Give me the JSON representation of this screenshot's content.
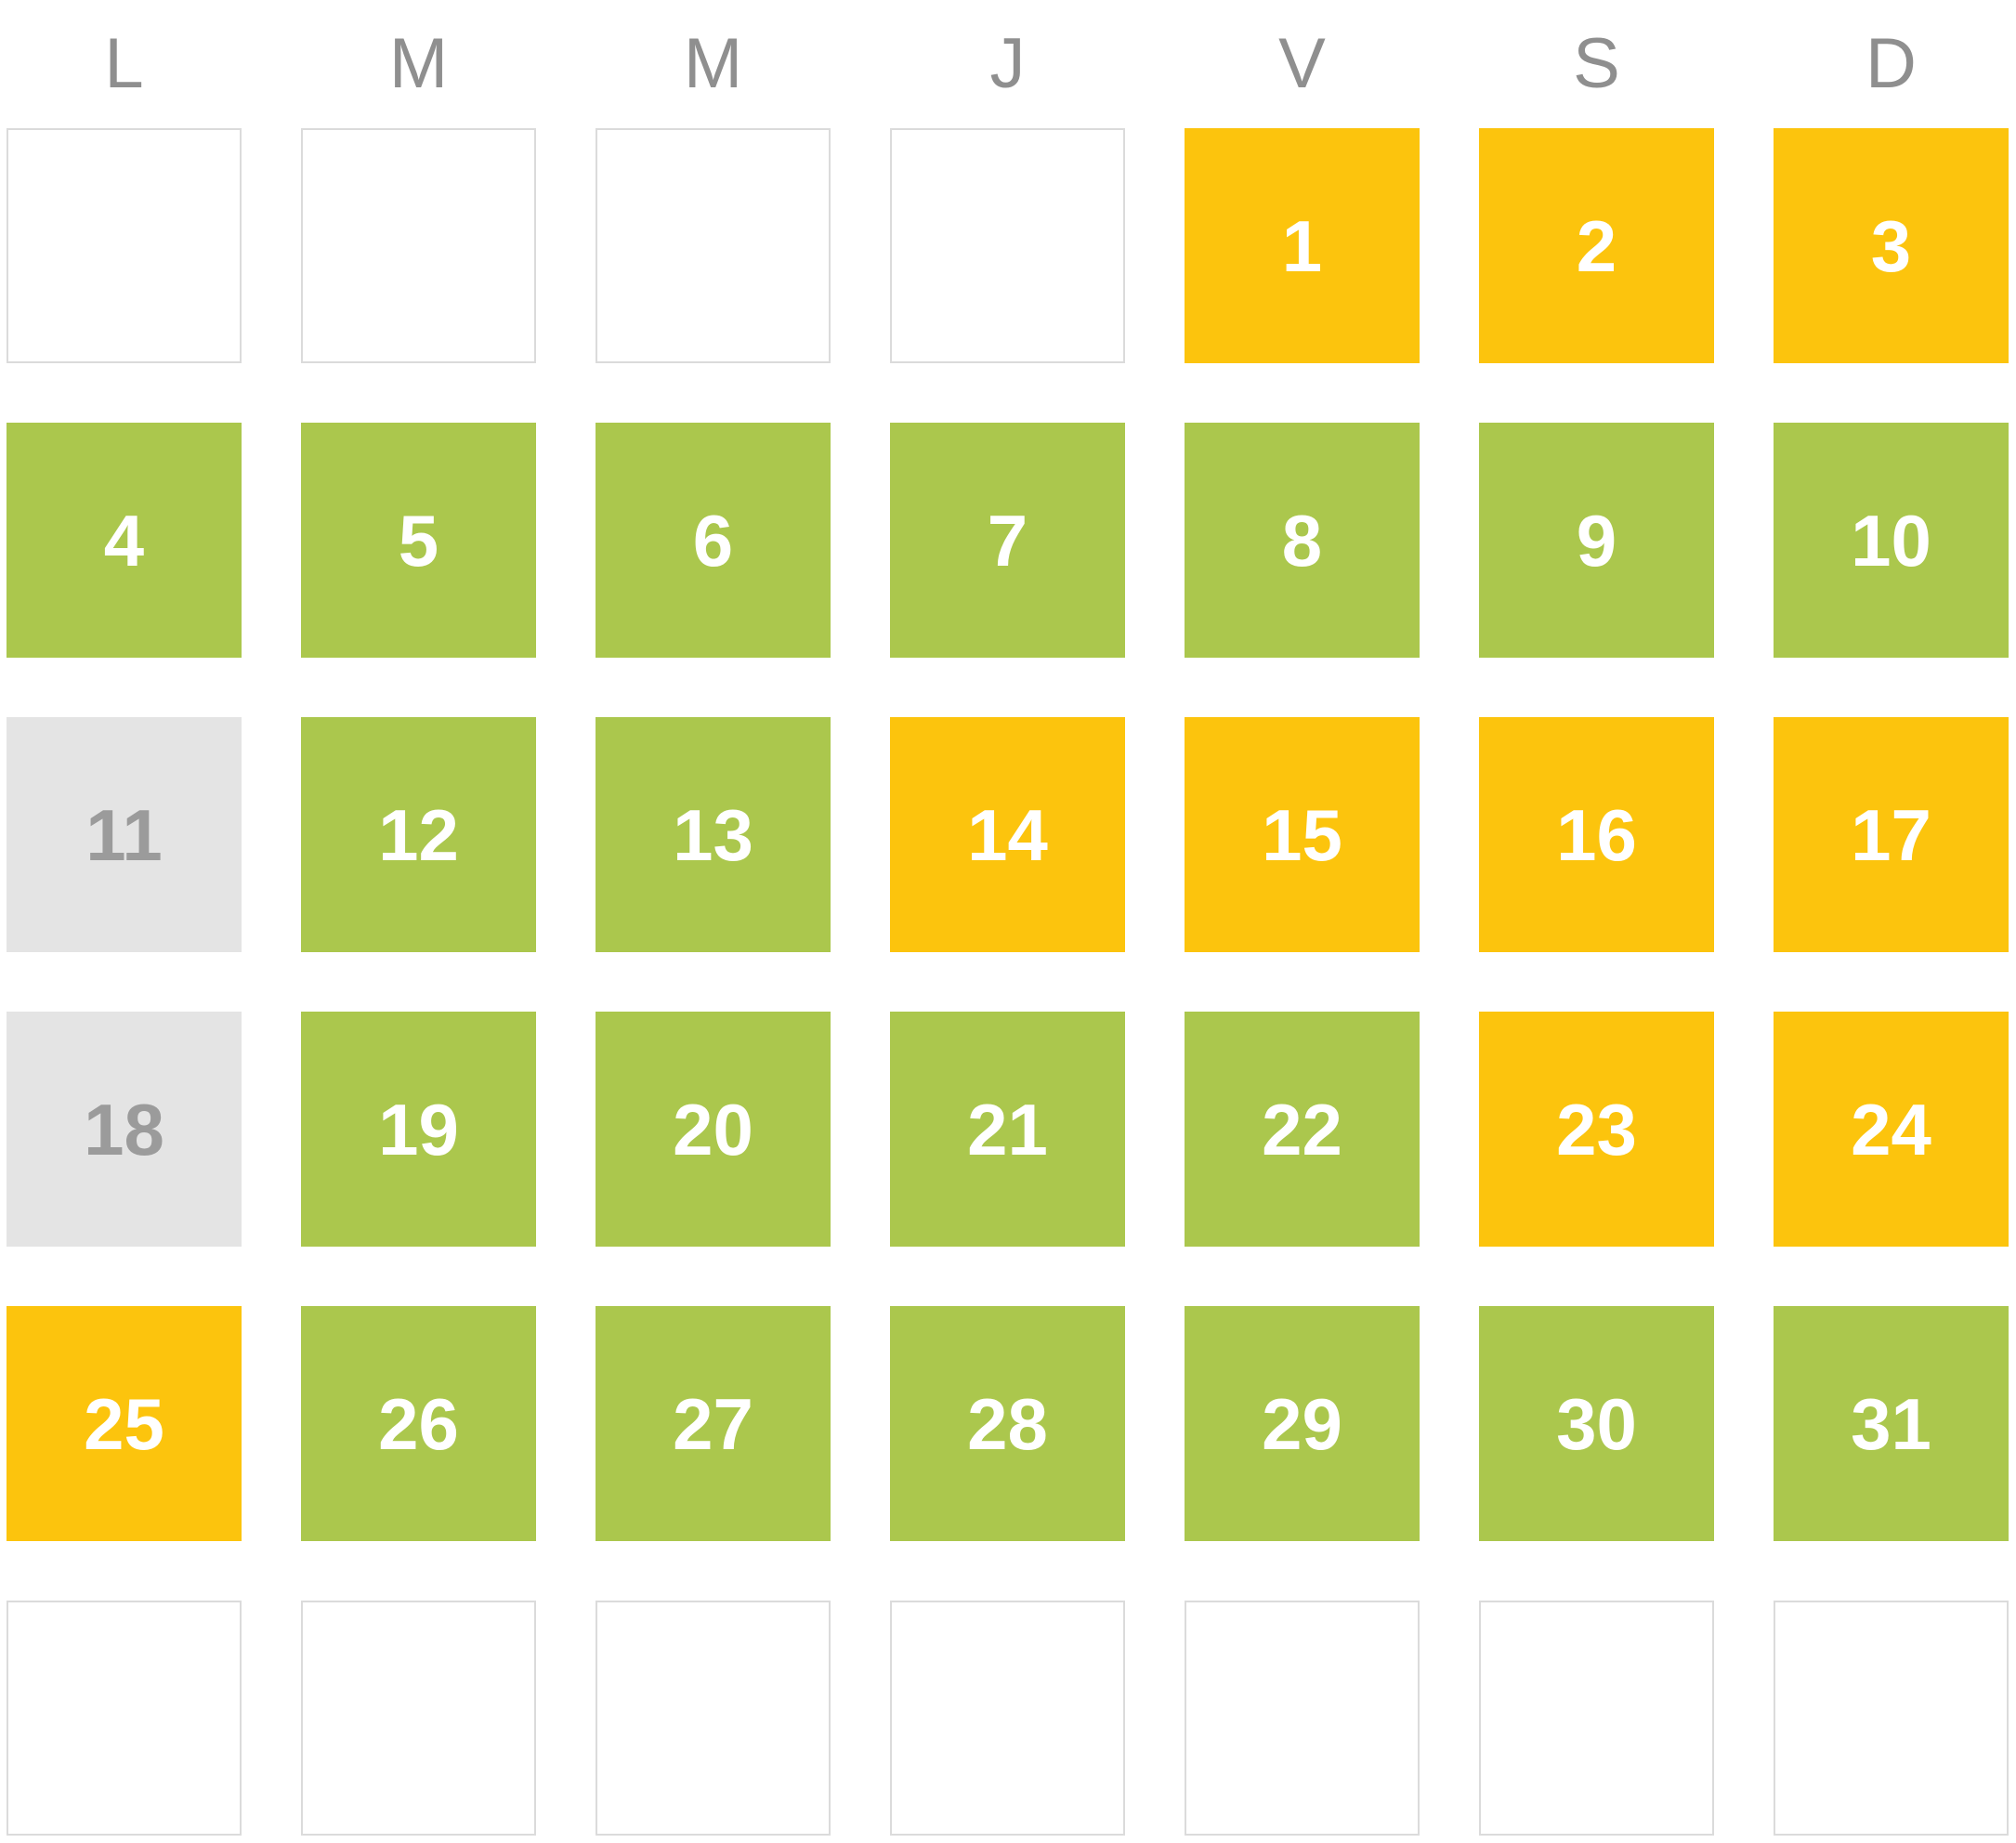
{
  "calendar": {
    "day_headers": [
      "L",
      "M",
      "M",
      "J",
      "V",
      "S",
      "D"
    ],
    "colors": {
      "green": "#ABC74D",
      "yellow": "#FCC40D",
      "gray_bg": "#E4E4E4",
      "gray_text": "#9B9B9B",
      "day_text": "#FFFFFF",
      "header_text": "#8F8F8F",
      "empty_border": "#DBDBDB",
      "background": "#FFFFFF"
    },
    "cells": [
      {
        "label": "",
        "state": "blank"
      },
      {
        "label": "",
        "state": "blank"
      },
      {
        "label": "",
        "state": "blank"
      },
      {
        "label": "",
        "state": "blank"
      },
      {
        "label": "1",
        "state": "yellow"
      },
      {
        "label": "2",
        "state": "yellow"
      },
      {
        "label": "3",
        "state": "yellow"
      },
      {
        "label": "4",
        "state": "green"
      },
      {
        "label": "5",
        "state": "green"
      },
      {
        "label": "6",
        "state": "green"
      },
      {
        "label": "7",
        "state": "green"
      },
      {
        "label": "8",
        "state": "green"
      },
      {
        "label": "9",
        "state": "green"
      },
      {
        "label": "10",
        "state": "green"
      },
      {
        "label": "11",
        "state": "gray"
      },
      {
        "label": "12",
        "state": "green"
      },
      {
        "label": "13",
        "state": "green"
      },
      {
        "label": "14",
        "state": "yellow"
      },
      {
        "label": "15",
        "state": "yellow"
      },
      {
        "label": "16",
        "state": "yellow"
      },
      {
        "label": "17",
        "state": "yellow"
      },
      {
        "label": "18",
        "state": "gray"
      },
      {
        "label": "19",
        "state": "green"
      },
      {
        "label": "20",
        "state": "green"
      },
      {
        "label": "21",
        "state": "green"
      },
      {
        "label": "22",
        "state": "green"
      },
      {
        "label": "23",
        "state": "yellow"
      },
      {
        "label": "24",
        "state": "yellow"
      },
      {
        "label": "25",
        "state": "yellow"
      },
      {
        "label": "26",
        "state": "green"
      },
      {
        "label": "27",
        "state": "green"
      },
      {
        "label": "28",
        "state": "green"
      },
      {
        "label": "29",
        "state": "green"
      },
      {
        "label": "30",
        "state": "green"
      },
      {
        "label": "31",
        "state": "green"
      },
      {
        "label": "",
        "state": "blank"
      },
      {
        "label": "",
        "state": "blank"
      },
      {
        "label": "",
        "state": "blank"
      },
      {
        "label": "",
        "state": "blank"
      },
      {
        "label": "",
        "state": "blank"
      },
      {
        "label": "",
        "state": "blank"
      },
      {
        "label": "",
        "state": "blank"
      }
    ]
  }
}
